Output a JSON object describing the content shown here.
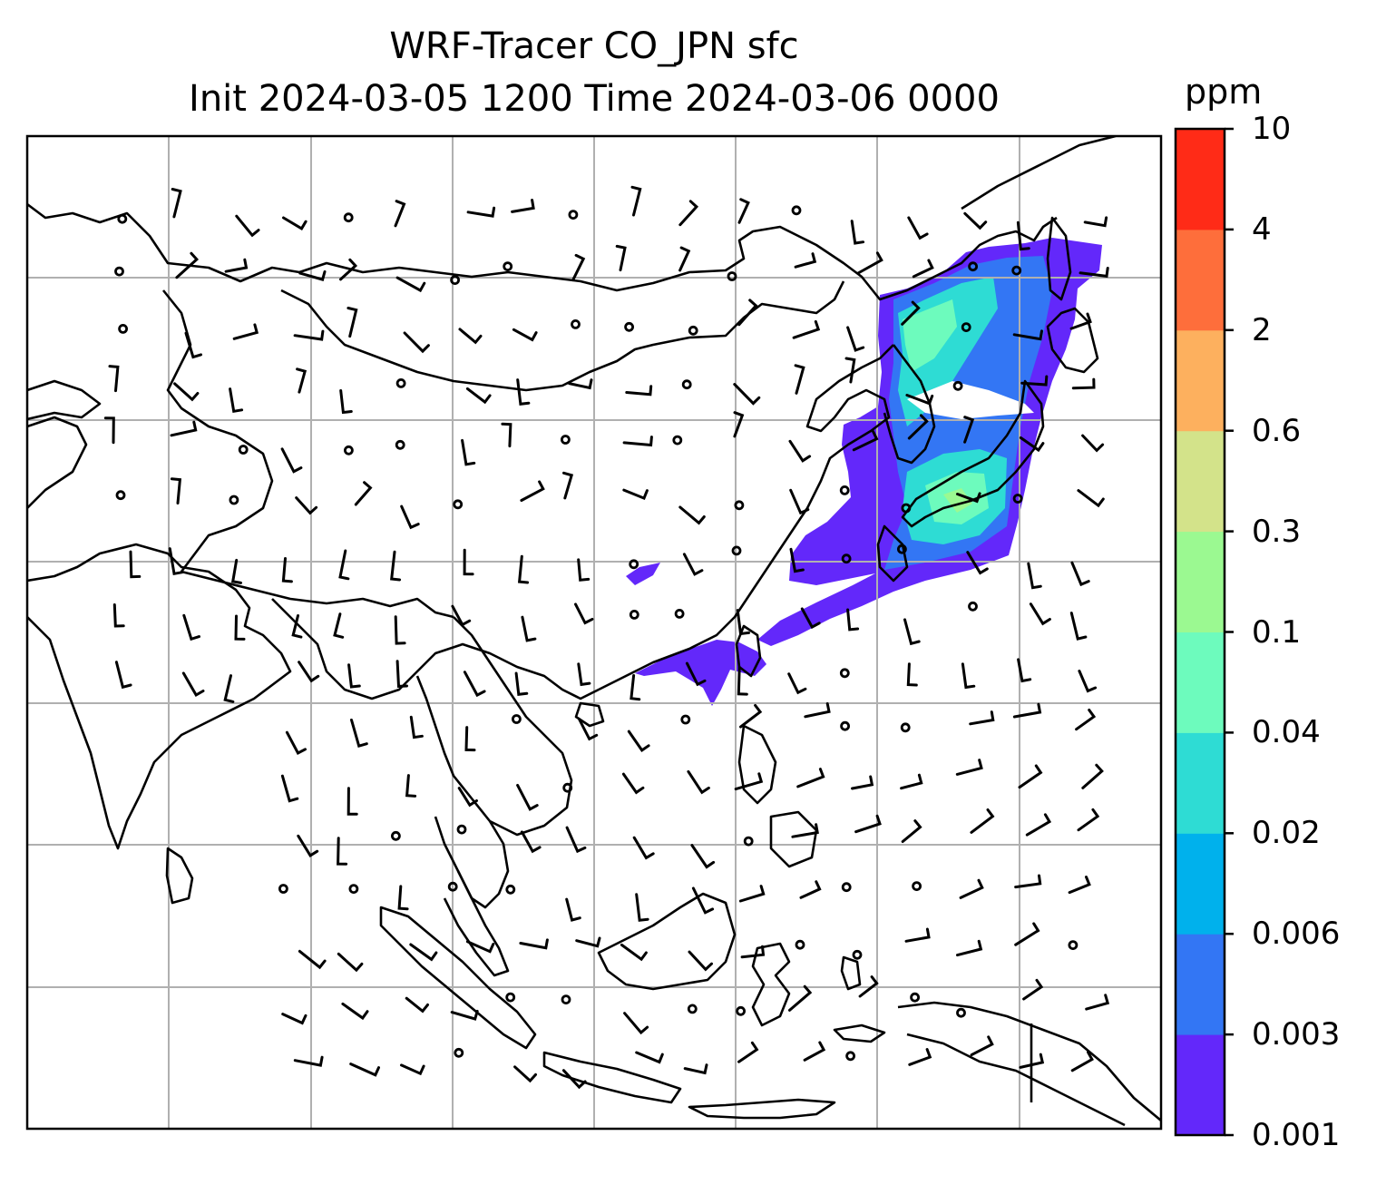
{
  "title": {
    "line1": "WRF-Tracer CO_JPN sfc",
    "line2": "Init 2024-03-05 1200 Time 2024-03-06 0000"
  },
  "colorbar": {
    "unit": "ppm",
    "levels": [
      "0.001",
      "0.003",
      "0.006",
      "0.02",
      "0.04",
      "0.1",
      "0.3",
      "0.6",
      "2",
      "4",
      "10"
    ],
    "colors": [
      "#6328fa",
      "#3376f4",
      "#00b1ec",
      "#2edcd4",
      "#6dfbbd",
      "#9bf991",
      "#d3e38a",
      "#fdb05e",
      "#fe6e3b",
      "#ff2b17"
    ]
  },
  "map": {
    "gridlines": true,
    "gridline_color": "#b0b0b0",
    "coastline_color": "#000000",
    "variable": "CO_JPN surface tracer",
    "wind_symbol": "wind-barbs"
  }
}
